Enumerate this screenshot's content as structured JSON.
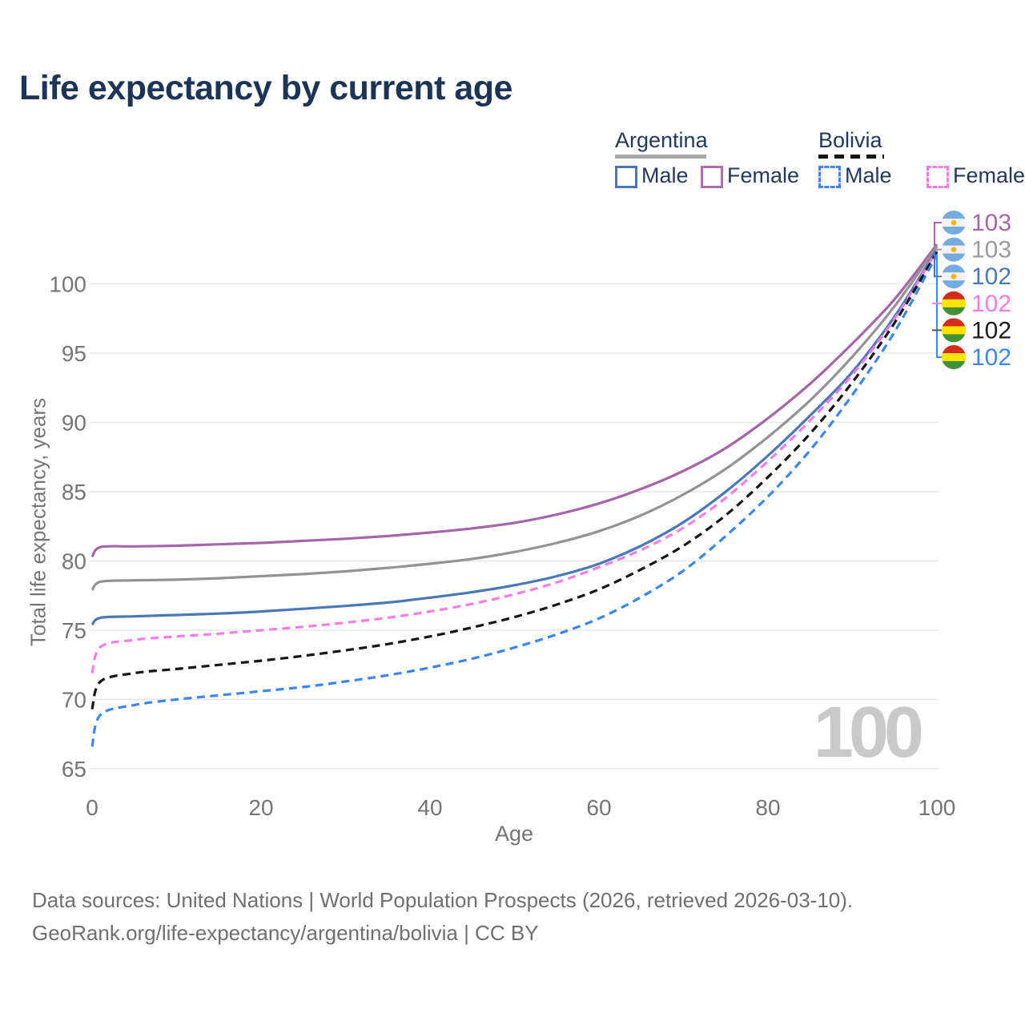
{
  "title": "Life expectancy by current age",
  "watermark": "100",
  "legend": {
    "argentina": {
      "label": "Argentina",
      "male": "Male",
      "female": "Female"
    },
    "bolivia": {
      "label": "Bolivia",
      "male": "Male",
      "female": "Female"
    },
    "colors": {
      "argentina_underline": "#a8a8a8",
      "bolivia_underline": "#111111",
      "argentina_male": "#4a77b7",
      "argentina_female": "#af6cb3",
      "bolivia_male": "#3c86ef",
      "bolivia_female": "#f87ce4"
    }
  },
  "chart_data": {
    "type": "line",
    "title": "Life expectancy by current age",
    "xlabel": "Age",
    "ylabel": "Total life expectancy, years",
    "x_ticks": [
      0,
      20,
      40,
      60,
      80,
      100
    ],
    "y_ticks": [
      65,
      70,
      75,
      80,
      85,
      90,
      95,
      100
    ],
    "xlim": [
      0,
      100
    ],
    "ylim": [
      65,
      103.5
    ],
    "grid": "horizontal-only",
    "legend_position": "top-right",
    "ages": [
      0,
      1,
      5,
      10,
      15,
      20,
      25,
      30,
      35,
      40,
      45,
      50,
      55,
      60,
      65,
      70,
      75,
      80,
      85,
      90,
      95,
      100
    ],
    "series": [
      {
        "name": "Argentina Female",
        "slug": "argentina-female",
        "country": "Argentina",
        "sex": "Female",
        "style": "solid",
        "color": "#a565a8",
        "end_label": 103,
        "flag": "argentina",
        "values": [
          80.3,
          81.0,
          81.05,
          81.1,
          81.2,
          81.3,
          81.45,
          81.6,
          81.8,
          82.05,
          82.35,
          82.75,
          83.35,
          84.15,
          85.2,
          86.5,
          88.15,
          90.3,
          92.8,
          95.7,
          98.9,
          102.85
        ]
      },
      {
        "name": "Argentina Both sexes",
        "slug": "argentina-both",
        "country": "Argentina",
        "sex": "Both",
        "style": "solid",
        "color": "#939393",
        "end_label": 103,
        "flag": "argentina",
        "values": [
          77.9,
          78.5,
          78.6,
          78.65,
          78.75,
          78.9,
          79.05,
          79.25,
          79.5,
          79.8,
          80.15,
          80.65,
          81.3,
          82.15,
          83.3,
          84.8,
          86.65,
          88.95,
          91.6,
          94.75,
          98.4,
          102.7
        ]
      },
      {
        "name": "Argentina Male",
        "slug": "argentina-male",
        "country": "Argentina",
        "sex": "Male",
        "style": "solid",
        "color": "#4a77b7",
        "end_label": 102,
        "flag": "argentina",
        "values": [
          75.4,
          75.9,
          76.0,
          76.1,
          76.2,
          76.35,
          76.55,
          76.75,
          77.0,
          77.35,
          77.75,
          78.25,
          78.9,
          79.8,
          81.1,
          82.8,
          85.0,
          87.6,
          90.5,
          93.65,
          97.65,
          102.5
        ]
      },
      {
        "name": "Bolivia Female",
        "slug": "bolivia-female",
        "country": "Bolivia",
        "sex": "Female",
        "style": "dashed",
        "color": "#f87ce4",
        "end_label": 102,
        "flag": "bolivia",
        "values": [
          71.9,
          73.8,
          74.3,
          74.55,
          74.75,
          75.0,
          75.25,
          75.55,
          75.9,
          76.35,
          76.9,
          77.6,
          78.45,
          79.55,
          80.8,
          82.4,
          84.55,
          87.2,
          90.15,
          93.45,
          97.5,
          102.4
        ]
      },
      {
        "name": "Bolivia Both sexes",
        "slug": "bolivia-both",
        "country": "Bolivia",
        "sex": "Both",
        "style": "dashed",
        "color": "#161616",
        "end_label": 102,
        "flag": "bolivia",
        "values": [
          69.3,
          71.3,
          71.9,
          72.2,
          72.5,
          72.8,
          73.15,
          73.55,
          74.0,
          74.55,
          75.2,
          75.95,
          76.85,
          77.95,
          79.4,
          81.1,
          83.3,
          86.05,
          89.2,
          92.9,
          97.2,
          102.3
        ]
      },
      {
        "name": "Bolivia Male",
        "slug": "bolivia-male",
        "country": "Bolivia",
        "sex": "Male",
        "style": "dashed",
        "color": "#3c86ef",
        "end_label": 102,
        "flag": "bolivia",
        "values": [
          66.6,
          68.9,
          69.6,
          70.0,
          70.3,
          70.6,
          70.9,
          71.3,
          71.75,
          72.3,
          72.95,
          73.75,
          74.7,
          75.85,
          77.4,
          79.3,
          81.8,
          84.65,
          88.0,
          92.0,
          96.55,
          102.1
        ]
      }
    ],
    "end_label_colors": [
      "#a565a8",
      "#9b9b9b",
      "#4a77b7",
      "#f87ce4",
      "#1a1a1a",
      "#3c86ef"
    ],
    "flags": {
      "argentina": {
        "bands": [
          "#74ACDF",
          "#f2f2f2",
          "#74ACDF"
        ],
        "sun": "#F6B40E"
      },
      "bolivia": {
        "bands": [
          "#D52B1E",
          "#F9E300",
          "#43903B"
        ]
      }
    }
  },
  "footer": {
    "line1": "Data sources: United Nations | World Population Prospects (2026, retrieved 2026-03-10).",
    "line2": "GeoRank.org/life-expectancy/argentina/bolivia | CC BY"
  }
}
